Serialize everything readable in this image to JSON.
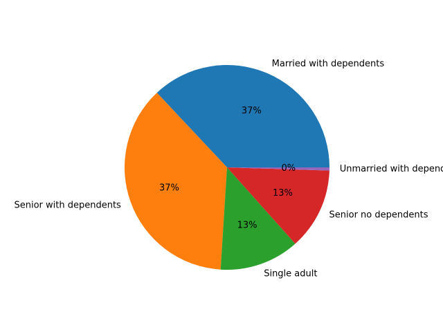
{
  "chart_data": {
    "type": "pie",
    "title": "",
    "start_angle_deg": 0,
    "direction": "counterclockwise",
    "slices": [
      {
        "label": "Married with dependents",
        "value": 37.0,
        "pct_text": "37%",
        "color": "#1f77b4"
      },
      {
        "label": "Senior with dependents",
        "value": 37.0,
        "pct_text": "37%",
        "color": "#ff7f0e"
      },
      {
        "label": "Single adult",
        "value": 12.6,
        "pct_text": "13%",
        "color": "#2ca02c"
      },
      {
        "label": "Senior no dependents",
        "value": 12.9,
        "pct_text": "13%",
        "color": "#d62728"
      },
      {
        "label": "Unmarried with dependents",
        "value": 0.5,
        "pct_text": "0%",
        "color": "#9467bd"
      }
    ]
  }
}
